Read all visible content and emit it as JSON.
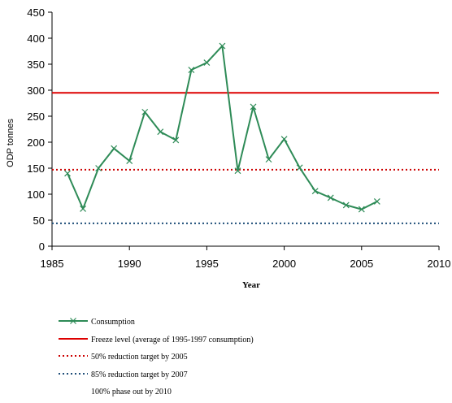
{
  "chart_data": {
    "type": "line",
    "xlabel": "Year",
    "ylabel": "ODP tonnes",
    "xlim": [
      1985,
      2010
    ],
    "ylim": [
      0,
      450
    ],
    "xticks": [
      1985,
      1990,
      1995,
      2000,
      2005,
      2010
    ],
    "yticks": [
      0,
      50,
      100,
      150,
      200,
      250,
      300,
      350,
      400,
      450
    ],
    "grid": false,
    "legend_position": "bottom",
    "series": [
      {
        "name": "Consumption",
        "color": "#2e8b57",
        "marker": "x",
        "x": [
          1986,
          1987,
          1988,
          1989,
          1990,
          1991,
          1992,
          1993,
          1994,
          1995,
          1996,
          1997,
          1998,
          1999,
          2000,
          2001,
          2002,
          2003,
          2004,
          2005,
          2006
        ],
        "y": [
          140,
          72,
          150,
          188,
          164,
          258,
          220,
          204,
          339,
          353,
          385,
          145,
          268,
          167,
          206,
          151,
          106,
          93,
          79,
          71,
          86
        ]
      }
    ],
    "reference_lines": [
      {
        "name": "Freeze level (average of 1995-1997 consumption)",
        "y": 295,
        "color": "#dd0000",
        "style": "solid"
      },
      {
        "name": "50% reduction target by 2005",
        "y": 147,
        "color": "#cc0000",
        "style": "dotted"
      },
      {
        "name": "85% reduction target by 2007",
        "y": 44,
        "color": "#1f4e79",
        "style": "dotted"
      }
    ],
    "extra_legend_text": "100% phase out by 2010"
  }
}
